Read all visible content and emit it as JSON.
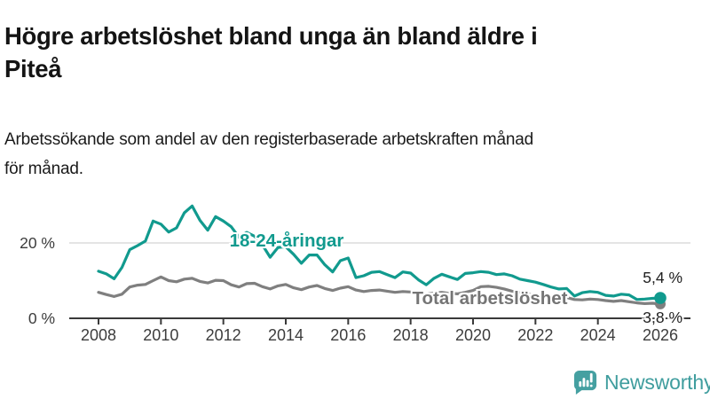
{
  "header": {
    "title_line1": "Högre arbetslöshet bland unga än bland äldre i",
    "title_line2": "Piteå",
    "subtitle_line1": "Arbetssökande som andel av den registerbaserade arbetskraften månad",
    "subtitle_line2": "för månad."
  },
  "chart_data": {
    "type": "line",
    "title": "Högre arbetslöshet bland unga än bland äldre i Piteå",
    "subtitle": "Arbetssökande som andel av den registerbaserade arbetskraften månad för månad.",
    "unit": "%",
    "x_start": 2008,
    "x_step": 0.25,
    "x_note": "quarterly sampling of monthly series, decimal years",
    "ylim": [
      0,
      32
    ],
    "xlim": [
      2007.8,
      2027
    ],
    "grid": "single light horizontal gridline at 20 %",
    "legend_position": "inline labels on lines",
    "x_ticks": {
      "values": [
        2008,
        2010,
        2012,
        2014,
        2016,
        2018,
        2020,
        2022,
        2024,
        2026
      ],
      "labels": [
        "2008",
        "2010",
        "2012",
        "2014",
        "2016",
        "2018",
        "2020",
        "2022",
        "2024",
        "2026"
      ]
    },
    "y_ticks": [
      {
        "value": 20,
        "label": "20 %"
      },
      {
        "value": 0,
        "label": "0 %"
      }
    ],
    "series": [
      {
        "name": "18-24-åringar",
        "color": "#119a8e",
        "end_label": "5,4 %",
        "end_value": 5.4,
        "values": [
          12.5,
          11.8,
          10.5,
          13.5,
          18.2,
          19.3,
          20.5,
          25.8,
          25.0,
          22.9,
          24.0,
          28.0,
          29.8,
          26.0,
          23.4,
          27.0,
          25.8,
          24.3,
          21.5,
          22.8,
          21.8,
          19.5,
          16.2,
          18.8,
          19.0,
          17.0,
          14.6,
          16.8,
          16.8,
          14.2,
          12.3,
          15.3,
          16.0,
          10.8,
          11.3,
          12.2,
          12.4,
          11.6,
          10.8,
          12.3,
          12.0,
          10.2,
          8.9,
          10.6,
          11.7,
          11.0,
          10.3,
          11.9,
          12.1,
          12.4,
          12.2,
          11.6,
          11.8,
          11.3,
          10.4,
          10.0,
          9.6,
          9.0,
          8.3,
          7.8,
          7.9,
          5.9,
          6.8,
          7.1,
          6.9,
          6.1,
          5.9,
          6.4,
          6.2,
          5.0,
          5.1,
          5.3,
          5.4
        ]
      },
      {
        "name": "Total arbetslöshet",
        "color": "#7f7f7f",
        "end_label": "3,8 %",
        "end_value": 3.8,
        "values": [
          6.9,
          6.3,
          5.8,
          6.4,
          8.3,
          8.8,
          9.0,
          10.0,
          11.0,
          10.0,
          9.7,
          10.4,
          10.6,
          9.8,
          9.4,
          10.1,
          10.0,
          8.9,
          8.3,
          9.2,
          9.3,
          8.4,
          7.8,
          8.6,
          9.0,
          8.1,
          7.6,
          8.3,
          8.7,
          7.9,
          7.4,
          8.0,
          8.4,
          7.5,
          7.1,
          7.4,
          7.5,
          7.2,
          6.9,
          7.1,
          7.0,
          6.6,
          6.4,
          6.7,
          6.9,
          6.6,
          6.5,
          6.9,
          7.4,
          8.4,
          8.5,
          8.2,
          7.8,
          7.2,
          6.8,
          6.4,
          6.2,
          5.8,
          5.6,
          5.7,
          5.5,
          5.0,
          4.9,
          5.1,
          5.0,
          4.7,
          4.5,
          4.7,
          4.4,
          4.1,
          3.9,
          4.0,
          3.8
        ]
      }
    ]
  },
  "branding": {
    "logo_text": "Newsworthy",
    "logo_icon": "bar-chart-speech-bubble-icon",
    "logo_icon_color": "#45a0a1",
    "logo_text_color": "#3f9d9e"
  },
  "colors": {
    "accent_teal": "#119a8e",
    "series_gray": "#7f7f7f",
    "gridline": "#dcdcdc",
    "axis": "#3a3a3a",
    "text": "#141414"
  }
}
